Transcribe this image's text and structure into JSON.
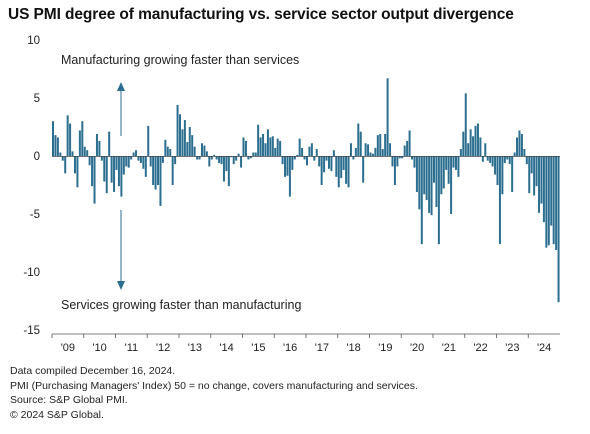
{
  "title": "US PMI degree of manufacturing vs. service sector output divergence",
  "annotations": {
    "upper": "Manufacturing growing faster than services",
    "lower": "Services growing faster than manufacturing"
  },
  "notes": [
    "Data compiled December 16, 2024.",
    "PMI (Purchasing Managers' Index) 50 =  no change, covers manufacturing and services.",
    "Source: S&P Global PMI.",
    "© 2024 S&P Global."
  ],
  "colors": {
    "bar": "#2c6e8f",
    "arrow": "#2c6e8f",
    "axis": "#555555",
    "zero_line": "#444444"
  },
  "chart_data": {
    "type": "bar",
    "title": "US PMI degree of manufacturing vs. service sector output divergence",
    "xlabel": "",
    "ylabel": "",
    "ylim": [
      -15,
      10
    ],
    "yticks": [
      10,
      5,
      0,
      -5,
      -10,
      -15
    ],
    "xticks": [
      "'09",
      "'10",
      "'11",
      "'12",
      "'13",
      "'14",
      "'15",
      "'16",
      "'17",
      "'18",
      "'19",
      "'20",
      "'21",
      "'22",
      "'23",
      "'24"
    ],
    "x_start": "2009-10",
    "x_end": "2024-11",
    "frequency": "monthly",
    "grid": false,
    "legend": "none",
    "values": [
      3.0,
      1.8,
      1.6,
      0.3,
      -0.4,
      -1.5,
      3.5,
      2.8,
      0.4,
      -1.5,
      -2.7,
      2.2,
      3.0,
      0.8,
      0.5,
      -0.8,
      -2.6,
      -4.1,
      1.9,
      1.3,
      -0.4,
      -2.2,
      -3.2,
      2.1,
      -2.3,
      -3.1,
      -1.2,
      -2.6,
      -3.5,
      -1.6,
      -0.9,
      -1.0,
      -0.3,
      0.3,
      0.5,
      -0.4,
      -0.6,
      -1.1,
      -1.8,
      2.6,
      -0.9,
      -2.5,
      -2.9,
      -2.5,
      -4.3,
      -0.6,
      1.4,
      0.8,
      0.6,
      -2.5,
      -0.7,
      4.4,
      3.6,
      2.3,
      3.1,
      1.2,
      2.5,
      1.8,
      0.8,
      -0.3,
      -0.3,
      1.1,
      0.9,
      0.4,
      -0.9,
      -0.3,
      0.1,
      -0.3,
      -0.6,
      -0.7,
      -2.2,
      -1.3,
      -2.6,
      -0.1,
      -0.7,
      -0.4,
      0.2,
      -1.0,
      1.6,
      1.3,
      -0.3,
      -0.2,
      0.3,
      0.3,
      2.7,
      1.6,
      1.9,
      1.1,
      2.3,
      1.6,
      1.7,
      0.7,
      1.5,
      1.3,
      -0.7,
      -1.8,
      -1.7,
      -3.5,
      -1.2,
      -0.3,
      0.1,
      1.5,
      0.7,
      -0.3,
      -0.8,
      0.8,
      1.1,
      -0.4,
      0.6,
      -0.9,
      -2.5,
      -1.4,
      -0.4,
      -1.1,
      -1.3,
      0.5,
      -1.8,
      -2.7,
      -1.9,
      -1.2,
      -2.4,
      -2.7,
      1.1,
      -0.3,
      0.7,
      2.8,
      2.1,
      -2.3,
      1.1,
      1.0,
      0.3,
      0.2,
      0.7,
      1.8,
      1.9,
      0.6,
      1.9,
      6.7,
      1.1,
      -0.9,
      -2.5,
      -0.9,
      -0.2,
      -0.2,
      0.9,
      1.3,
      2.2,
      -0.3,
      -1.0,
      -3.1,
      -4.6,
      -7.6,
      -3.3,
      -3.8,
      -4.9,
      -5.1,
      -2.3,
      -4.4,
      -7.6,
      -3.3,
      -2.8,
      -1.2,
      -2.4,
      -5.0,
      -1.0,
      -1.2,
      -1.8,
      0.6,
      2.1,
      5.4,
      1.1,
      2.3,
      1.7,
      2.6,
      2.8,
      1.6,
      -0.5,
      1.1,
      -0.4,
      -0.6,
      -0.9,
      -1.6,
      -2.5,
      -7.6,
      -3.3,
      -0.6,
      -0.3,
      -0.7,
      -3.1,
      0.3,
      1.6,
      2.2,
      1.9,
      0.6,
      -0.7,
      -3.2,
      -1.5,
      -3.4,
      -2.6,
      -4.9,
      -4.1,
      -5.7,
      -7.9,
      -7.7,
      -6.0,
      -7.6,
      -8.1,
      -12.6
    ]
  }
}
